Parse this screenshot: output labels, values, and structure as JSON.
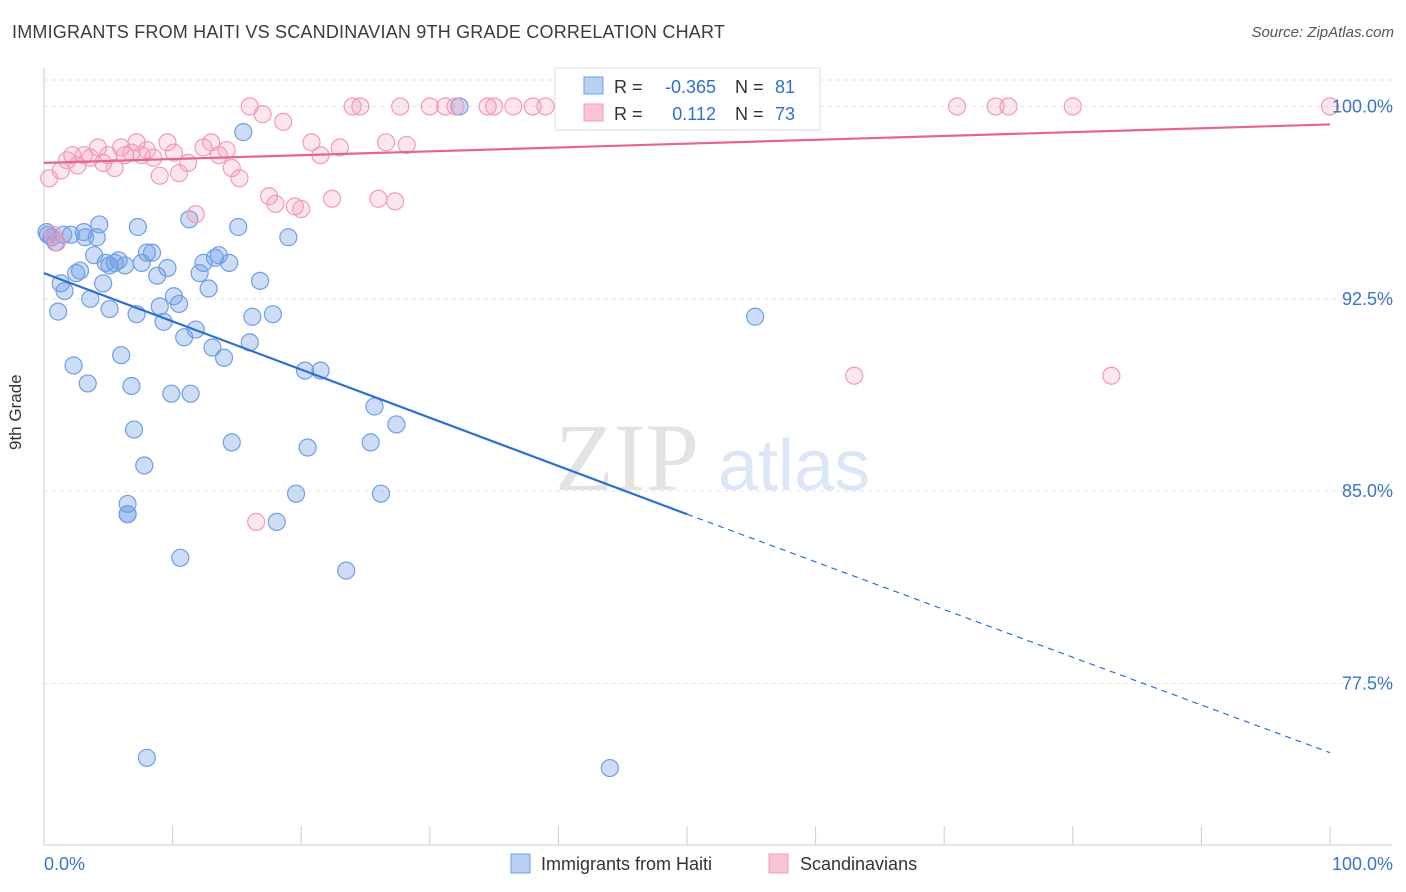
{
  "title": "IMMIGRANTS FROM HAITI VS SCANDINAVIAN 9TH GRADE CORRELATION CHART",
  "source": "Source: ZipAtlas.com",
  "watermark": {
    "zip": "ZIP",
    "atlas": "atlas"
  },
  "colors": {
    "blue": "#6f9fe6",
    "blue_line": "#2f6fd0",
    "pink": "#f49ab8",
    "pink_line": "#e4668f"
  },
  "chart_data": {
    "type": "scatter",
    "xlabel": "",
    "ylabel": "9th Grade",
    "xlim": [
      0,
      100
    ],
    "ylim": [
      71.2,
      101.5
    ],
    "x_tick_labels": [
      "0.0%",
      "100.0%"
    ],
    "y_ticks": [
      77.5,
      85.0,
      92.5,
      100.0
    ],
    "y_tick_labels": [
      "77.5%",
      "85.0%",
      "92.5%",
      "100.0%"
    ],
    "grid": true,
    "legend_position": "top-center",
    "stats": [
      {
        "r_label": "R =",
        "r": "-0.365",
        "n_label": "N =",
        "n": "81"
      },
      {
        "r_label": "R =",
        "r": "0.112",
        "n_label": "N =",
        "n": "73"
      }
    ],
    "series": [
      {
        "name": "Immigrants from Haiti",
        "trend": {
          "x0": 0,
          "y0": 93.5,
          "x1": 50,
          "y1": 84.1,
          "dash_to_x": 100,
          "dash_to_y": 74.8
        },
        "points": [
          [
            0.3,
            95.0
          ],
          [
            0.6,
            94.9
          ],
          [
            0.9,
            94.7
          ],
          [
            1.1,
            92.0
          ],
          [
            1.3,
            93.1
          ],
          [
            1.6,
            92.8
          ],
          [
            2.1,
            95.0
          ],
          [
            2.3,
            89.9
          ],
          [
            2.5,
            93.5
          ],
          [
            2.8,
            93.6
          ],
          [
            3.1,
            95.1
          ],
          [
            3.4,
            89.2
          ],
          [
            3.6,
            92.5
          ],
          [
            3.9,
            94.2
          ],
          [
            4.1,
            94.9
          ],
          [
            4.3,
            95.4
          ],
          [
            4.6,
            93.1
          ],
          [
            4.8,
            93.9
          ],
          [
            5.1,
            92.1
          ],
          [
            5.5,
            93.9
          ],
          [
            5.8,
            94.0
          ],
          [
            6.0,
            90.3
          ],
          [
            6.3,
            93.8
          ],
          [
            6.8,
            89.1
          ],
          [
            7.0,
            87.4
          ],
          [
            7.3,
            95.3
          ],
          [
            7.6,
            93.9
          ],
          [
            7.8,
            86.0
          ],
          [
            8.0,
            94.3
          ],
          [
            8.4,
            94.3
          ],
          [
            8.8,
            93.4
          ],
          [
            9.0,
            92.2
          ],
          [
            9.3,
            91.6
          ],
          [
            9.6,
            93.7
          ],
          [
            9.9,
            88.8
          ],
          [
            10.1,
            92.6
          ],
          [
            10.5,
            92.3
          ],
          [
            10.9,
            91.0
          ],
          [
            11.3,
            95.6
          ],
          [
            11.4,
            88.8
          ],
          [
            11.8,
            91.3
          ],
          [
            12.1,
            93.5
          ],
          [
            12.4,
            93.9
          ],
          [
            12.8,
            92.9
          ],
          [
            13.1,
            90.6
          ],
          [
            13.3,
            94.1
          ],
          [
            13.6,
            94.2
          ],
          [
            14.0,
            90.2
          ],
          [
            14.4,
            93.9
          ],
          [
            14.6,
            86.9
          ],
          [
            15.1,
            95.3
          ],
          [
            15.5,
            99.0
          ],
          [
            16.0,
            90.8
          ],
          [
            16.2,
            91.8
          ],
          [
            16.8,
            93.2
          ],
          [
            17.8,
            91.9
          ],
          [
            18.1,
            83.8
          ],
          [
            19.0,
            94.9
          ],
          [
            19.6,
            84.9
          ],
          [
            20.5,
            86.7
          ],
          [
            20.3,
            89.7
          ],
          [
            21.5,
            89.7
          ],
          [
            23.5,
            81.9
          ],
          [
            25.4,
            86.9
          ],
          [
            25.7,
            88.3
          ],
          [
            26.2,
            84.9
          ],
          [
            27.4,
            87.6
          ],
          [
            32.3,
            100.0
          ],
          [
            42.1,
            100.0
          ],
          [
            44.0,
            74.2
          ],
          [
            55.3,
            91.8
          ],
          [
            10.6,
            82.4
          ],
          [
            8.0,
            74.6
          ],
          [
            6.5,
            84.5
          ],
          [
            6.5,
            84.1
          ],
          [
            6.5,
            84.1
          ],
          [
            0.2,
            95.1
          ],
          [
            1.5,
            95.0
          ],
          [
            3.2,
            94.9
          ],
          [
            5.1,
            93.8
          ],
          [
            7.2,
            91.9
          ]
        ]
      },
      {
        "name": "Scandinavians",
        "trend": {
          "x0": 0,
          "y0": 97.8,
          "x1": 100,
          "y1": 99.3
        },
        "points": [
          [
            0.4,
            97.2
          ],
          [
            0.7,
            95.0
          ],
          [
            1.0,
            94.7
          ],
          [
            1.3,
            97.5
          ],
          [
            1.8,
            97.9
          ],
          [
            2.2,
            98.1
          ],
          [
            2.6,
            97.7
          ],
          [
            3.1,
            98.1
          ],
          [
            3.6,
            98.0
          ],
          [
            4.2,
            98.4
          ],
          [
            4.6,
            97.8
          ],
          [
            5.0,
            98.1
          ],
          [
            5.5,
            97.6
          ],
          [
            6.0,
            98.4
          ],
          [
            6.3,
            98.1
          ],
          [
            6.8,
            98.2
          ],
          [
            7.2,
            98.6
          ],
          [
            7.6,
            98.1
          ],
          [
            8.0,
            98.3
          ],
          [
            8.5,
            98.0
          ],
          [
            9.0,
            97.3
          ],
          [
            9.6,
            98.6
          ],
          [
            10.1,
            98.2
          ],
          [
            10.5,
            97.4
          ],
          [
            11.2,
            97.8
          ],
          [
            11.8,
            95.8
          ],
          [
            12.4,
            98.4
          ],
          [
            13.0,
            98.6
          ],
          [
            13.6,
            98.1
          ],
          [
            14.2,
            98.3
          ],
          [
            14.6,
            97.6
          ],
          [
            15.2,
            97.2
          ],
          [
            16.0,
            100.0
          ],
          [
            16.5,
            83.8
          ],
          [
            17.0,
            99.7
          ],
          [
            17.5,
            96.5
          ],
          [
            18.0,
            96.2
          ],
          [
            18.6,
            99.4
          ],
          [
            19.5,
            96.1
          ],
          [
            20.0,
            96.0
          ],
          [
            20.8,
            98.6
          ],
          [
            21.5,
            98.1
          ],
          [
            22.4,
            96.4
          ],
          [
            23.0,
            98.4
          ],
          [
            24.0,
            100.0
          ],
          [
            24.6,
            100.0
          ],
          [
            26.0,
            96.4
          ],
          [
            26.6,
            98.6
          ],
          [
            27.3,
            96.3
          ],
          [
            27.7,
            100.0
          ],
          [
            28.2,
            98.5
          ],
          [
            30.0,
            100.0
          ],
          [
            31.2,
            100.0
          ],
          [
            32.0,
            100.0
          ],
          [
            34.5,
            100.0
          ],
          [
            35.0,
            100.0
          ],
          [
            36.5,
            100.0
          ],
          [
            38.0,
            100.0
          ],
          [
            39.0,
            100.0
          ],
          [
            40.5,
            100.0
          ],
          [
            42.0,
            100.0
          ],
          [
            44.5,
            100.0
          ],
          [
            47.0,
            100.0
          ],
          [
            49.5,
            100.0
          ],
          [
            55.0,
            100.0
          ],
          [
            58.0,
            100.0
          ],
          [
            63.0,
            89.5
          ],
          [
            71.0,
            100.0
          ],
          [
            74.0,
            100.0
          ],
          [
            75.0,
            100.0
          ],
          [
            80.0,
            100.0
          ],
          [
            83.0,
            89.5
          ],
          [
            100.0,
            100.0
          ]
        ]
      }
    ]
  }
}
